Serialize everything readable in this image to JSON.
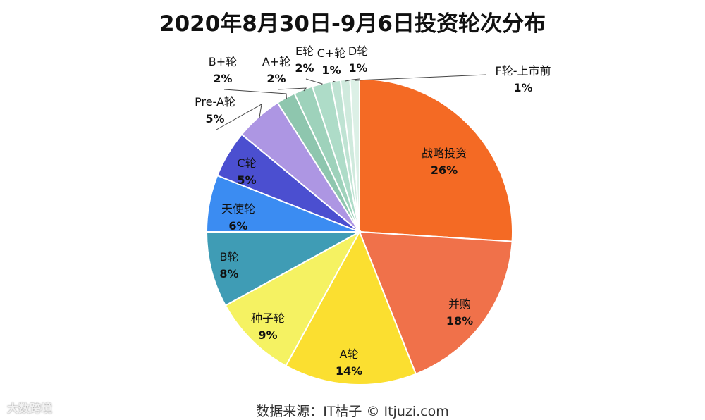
{
  "chart_data": {
    "type": "pie",
    "title": "2020年8月30日-9月6日投资轮次分布",
    "categories": [
      "战略投资",
      "并购",
      "A轮",
      "种子轮",
      "B轮",
      "天使轮",
      "C轮",
      "Pre-A轮",
      "B+轮",
      "A+轮",
      "E轮",
      "C+轮",
      "D轮",
      "F轮-上市前"
    ],
    "values": [
      26,
      18,
      14,
      9,
      8,
      6,
      5,
      5,
      2,
      2,
      2,
      1,
      1,
      1
    ],
    "labels": [
      "26%",
      "18%",
      "14%",
      "9%",
      "8%",
      "6%",
      "5%",
      "5%",
      "2%",
      "2%",
      "2%",
      "1%",
      "1%",
      "1%"
    ],
    "colors": [
      "#F46A24",
      "#F0714A",
      "#FBDF30",
      "#F5F262",
      "#3F9CB5",
      "#3B8CF2",
      "#4B4FD0",
      "#AD96E3",
      "#8EC6AE",
      "#9ED2BB",
      "#AEDCC8",
      "#BFE3D3",
      "#CFEADD",
      "#DCF0E6"
    ],
    "start_angle_deg": 0,
    "direction": "clockwise"
  },
  "footer": {
    "source": "数据来源：IT桔子 © Itjuzi.com",
    "watermark": "大数跨境"
  }
}
